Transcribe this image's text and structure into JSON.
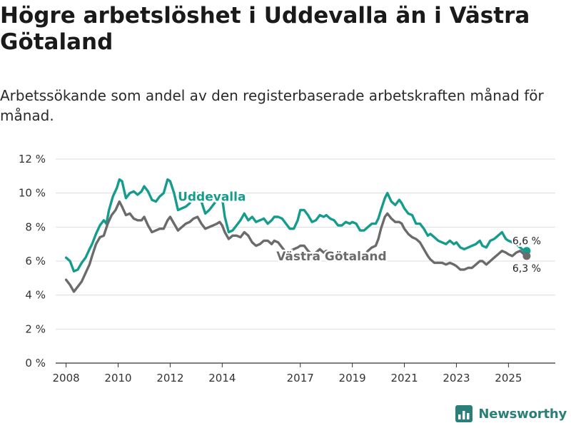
{
  "title": "Högre arbetslöshet i Uddevalla än i Västra Götaland",
  "subtitle": "Arbetssökande som andel av den registerbaserade arbetskraften månad för månad.",
  "brand": "Newsworthy",
  "colors": {
    "uddevalla": "#159c8c",
    "vastra_gotaland": "#6b6b6b",
    "grid": "#dddddd",
    "axis": "#333333",
    "brand": "#2a7f78"
  },
  "chart_data": {
    "type": "line",
    "title": "Högre arbetslöshet i Uddevalla än i Västra Götaland",
    "xlabel": "",
    "ylabel": "",
    "xlim": [
      2007.6,
      2026.8
    ],
    "ylim": [
      0,
      12
    ],
    "xticks": [
      2008,
      2010,
      2012,
      2014,
      2017,
      2019,
      2021,
      2023,
      2025
    ],
    "yticks": [
      {
        "value": 0,
        "label": "0 %"
      },
      {
        "value": 2,
        "label": "2 %"
      },
      {
        "value": 4,
        "label": "4 %"
      },
      {
        "value": 6,
        "label": "6 %"
      },
      {
        "value": 8,
        "label": "8 %"
      },
      {
        "value": 10,
        "label": "10 %"
      },
      {
        "value": 12,
        "label": "12 %"
      }
    ],
    "grid": true,
    "series": [
      {
        "name": "Uddevalla",
        "label_anchor": [
          2013.6,
          9.8
        ],
        "end_label": "6,6 %",
        "points": [
          [
            2008.0,
            6.2
          ],
          [
            2008.15,
            6.0
          ],
          [
            2008.3,
            5.4
          ],
          [
            2008.45,
            5.5
          ],
          [
            2008.6,
            5.9
          ],
          [
            2008.75,
            6.2
          ],
          [
            2008.9,
            6.7
          ],
          [
            2009.0,
            7.0
          ],
          [
            2009.15,
            7.6
          ],
          [
            2009.3,
            8.1
          ],
          [
            2009.45,
            8.4
          ],
          [
            2009.55,
            8.2
          ],
          [
            2009.65,
            9.0
          ],
          [
            2009.8,
            9.8
          ],
          [
            2009.95,
            10.3
          ],
          [
            2010.05,
            10.8
          ],
          [
            2010.15,
            10.7
          ],
          [
            2010.3,
            9.7
          ],
          [
            2010.45,
            10.0
          ],
          [
            2010.6,
            10.1
          ],
          [
            2010.75,
            9.9
          ],
          [
            2010.9,
            10.1
          ],
          [
            2011.0,
            10.4
          ],
          [
            2011.15,
            10.1
          ],
          [
            2011.3,
            9.6
          ],
          [
            2011.45,
            9.5
          ],
          [
            2011.6,
            9.8
          ],
          [
            2011.75,
            10.0
          ],
          [
            2011.9,
            10.8
          ],
          [
            2012.0,
            10.7
          ],
          [
            2012.15,
            10.0
          ],
          [
            2012.3,
            9.0
          ],
          [
            2012.45,
            9.1
          ],
          [
            2012.6,
            9.2
          ],
          [
            2012.75,
            9.4
          ],
          [
            2012.9,
            9.9
          ],
          [
            2013.05,
            10.0
          ],
          [
            2013.2,
            9.5
          ],
          [
            2013.35,
            8.8
          ],
          [
            2013.5,
            9.0
          ],
          [
            2013.65,
            9.3
          ],
          [
            2013.8,
            9.6
          ],
          [
            2013.9,
            9.8
          ],
          [
            2014.0,
            9.7
          ],
          [
            2014.1,
            8.6
          ],
          [
            2014.25,
            7.7
          ],
          [
            2014.4,
            7.8
          ],
          [
            2014.55,
            8.1
          ],
          [
            2014.7,
            8.4
          ],
          [
            2014.85,
            8.8
          ],
          [
            2015.0,
            8.4
          ],
          [
            2015.15,
            8.6
          ],
          [
            2015.3,
            8.3
          ],
          [
            2015.45,
            8.4
          ],
          [
            2015.6,
            8.5
          ],
          [
            2015.75,
            8.2
          ],
          [
            2015.9,
            8.4
          ],
          [
            2016.0,
            8.6
          ],
          [
            2016.15,
            8.6
          ],
          [
            2016.3,
            8.5
          ],
          [
            2016.45,
            8.2
          ],
          [
            2016.6,
            7.9
          ],
          [
            2016.75,
            7.9
          ],
          [
            2016.9,
            8.4
          ],
          [
            2017.0,
            9.0
          ],
          [
            2017.15,
            9.0
          ],
          [
            2017.3,
            8.7
          ],
          [
            2017.45,
            8.3
          ],
          [
            2017.6,
            8.4
          ],
          [
            2017.75,
            8.7
          ],
          [
            2017.9,
            8.6
          ],
          [
            2018.0,
            8.7
          ],
          [
            2018.15,
            8.5
          ],
          [
            2018.3,
            8.4
          ],
          [
            2018.45,
            8.1
          ],
          [
            2018.6,
            8.1
          ],
          [
            2018.75,
            8.3
          ],
          [
            2018.9,
            8.2
          ],
          [
            2019.0,
            8.3
          ],
          [
            2019.15,
            8.2
          ],
          [
            2019.3,
            7.8
          ],
          [
            2019.45,
            7.8
          ],
          [
            2019.6,
            8.0
          ],
          [
            2019.75,
            8.2
          ],
          [
            2019.9,
            8.2
          ],
          [
            2020.0,
            8.5
          ],
          [
            2020.1,
            9.0
          ],
          [
            2020.25,
            9.7
          ],
          [
            2020.35,
            10.0
          ],
          [
            2020.5,
            9.5
          ],
          [
            2020.65,
            9.3
          ],
          [
            2020.8,
            9.6
          ],
          [
            2020.9,
            9.4
          ],
          [
            2021.0,
            9.1
          ],
          [
            2021.15,
            8.8
          ],
          [
            2021.3,
            8.7
          ],
          [
            2021.45,
            8.2
          ],
          [
            2021.6,
            8.2
          ],
          [
            2021.75,
            7.9
          ],
          [
            2021.9,
            7.5
          ],
          [
            2022.0,
            7.6
          ],
          [
            2022.15,
            7.4
          ],
          [
            2022.3,
            7.2
          ],
          [
            2022.45,
            7.1
          ],
          [
            2022.6,
            7.0
          ],
          [
            2022.75,
            7.2
          ],
          [
            2022.9,
            7.0
          ],
          [
            2023.0,
            7.1
          ],
          [
            2023.15,
            6.8
          ],
          [
            2023.3,
            6.7
          ],
          [
            2023.45,
            6.8
          ],
          [
            2023.6,
            6.9
          ],
          [
            2023.75,
            7.0
          ],
          [
            2023.9,
            7.2
          ],
          [
            2024.0,
            6.9
          ],
          [
            2024.15,
            6.8
          ],
          [
            2024.3,
            7.2
          ],
          [
            2024.45,
            7.3
          ],
          [
            2024.6,
            7.5
          ],
          [
            2024.75,
            7.7
          ],
          [
            2024.9,
            7.3
          ],
          [
            2025.0,
            7.2
          ],
          [
            2025.15,
            7.1
          ],
          [
            2025.3,
            7.0
          ],
          [
            2025.45,
            6.8
          ],
          [
            2025.6,
            6.6
          ],
          [
            2025.7,
            6.6
          ]
        ]
      },
      {
        "name": "Västra Götaland",
        "label_anchor": [
          2018.2,
          6.3
        ],
        "end_label": "6,3 %",
        "points": [
          [
            2008.0,
            4.9
          ],
          [
            2008.15,
            4.6
          ],
          [
            2008.3,
            4.2
          ],
          [
            2008.45,
            4.5
          ],
          [
            2008.6,
            4.8
          ],
          [
            2008.75,
            5.3
          ],
          [
            2008.9,
            5.8
          ],
          [
            2009.0,
            6.3
          ],
          [
            2009.15,
            7.0
          ],
          [
            2009.3,
            7.4
          ],
          [
            2009.45,
            7.5
          ],
          [
            2009.6,
            8.2
          ],
          [
            2009.75,
            8.7
          ],
          [
            2009.9,
            9.0
          ],
          [
            2010.05,
            9.5
          ],
          [
            2010.15,
            9.2
          ],
          [
            2010.3,
            8.7
          ],
          [
            2010.45,
            8.8
          ],
          [
            2010.6,
            8.5
          ],
          [
            2010.75,
            8.4
          ],
          [
            2010.9,
            8.4
          ],
          [
            2011.0,
            8.6
          ],
          [
            2011.15,
            8.1
          ],
          [
            2011.3,
            7.7
          ],
          [
            2011.45,
            7.8
          ],
          [
            2011.6,
            7.9
          ],
          [
            2011.75,
            7.9
          ],
          [
            2011.9,
            8.4
          ],
          [
            2012.0,
            8.6
          ],
          [
            2012.15,
            8.2
          ],
          [
            2012.3,
            7.8
          ],
          [
            2012.45,
            8.0
          ],
          [
            2012.6,
            8.2
          ],
          [
            2012.75,
            8.3
          ],
          [
            2012.9,
            8.5
          ],
          [
            2013.05,
            8.6
          ],
          [
            2013.2,
            8.2
          ],
          [
            2013.35,
            7.9
          ],
          [
            2013.5,
            8.0
          ],
          [
            2013.65,
            8.1
          ],
          [
            2013.8,
            8.2
          ],
          [
            2013.9,
            8.3
          ],
          [
            2014.0,
            8.1
          ],
          [
            2014.1,
            7.7
          ],
          [
            2014.25,
            7.3
          ],
          [
            2014.4,
            7.5
          ],
          [
            2014.55,
            7.5
          ],
          [
            2014.7,
            7.4
          ],
          [
            2014.85,
            7.7
          ],
          [
            2015.0,
            7.5
          ],
          [
            2015.15,
            7.1
          ],
          [
            2015.3,
            6.9
          ],
          [
            2015.45,
            7.0
          ],
          [
            2015.6,
            7.2
          ],
          [
            2015.75,
            7.2
          ],
          [
            2015.9,
            7.0
          ],
          [
            2016.0,
            7.2
          ],
          [
            2016.15,
            7.1
          ],
          [
            2016.3,
            6.8
          ],
          [
            2016.45,
            6.5
          ],
          [
            2016.6,
            6.6
          ],
          [
            2016.75,
            6.7
          ],
          [
            2016.9,
            6.8
          ],
          [
            2017.0,
            6.9
          ],
          [
            2017.15,
            6.9
          ],
          [
            2017.3,
            6.6
          ],
          [
            2017.45,
            6.4
          ],
          [
            2017.6,
            6.5
          ],
          [
            2017.75,
            6.7
          ],
          [
            2017.9,
            6.5
          ],
          [
            2018.0,
            6.6
          ],
          [
            2018.15,
            6.5
          ],
          [
            2018.3,
            6.3
          ],
          [
            2018.45,
            6.2
          ],
          [
            2018.6,
            6.2
          ],
          [
            2018.75,
            6.3
          ],
          [
            2018.9,
            6.2
          ],
          [
            2019.0,
            6.1
          ],
          [
            2019.15,
            6.0
          ],
          [
            2019.3,
            6.1
          ],
          [
            2019.45,
            6.3
          ],
          [
            2019.6,
            6.6
          ],
          [
            2019.75,
            6.8
          ],
          [
            2019.9,
            6.9
          ],
          [
            2020.0,
            7.3
          ],
          [
            2020.1,
            7.9
          ],
          [
            2020.25,
            8.6
          ],
          [
            2020.35,
            8.8
          ],
          [
            2020.5,
            8.5
          ],
          [
            2020.65,
            8.3
          ],
          [
            2020.8,
            8.3
          ],
          [
            2020.9,
            8.2
          ],
          [
            2021.0,
            7.9
          ],
          [
            2021.15,
            7.6
          ],
          [
            2021.3,
            7.4
          ],
          [
            2021.45,
            7.3
          ],
          [
            2021.6,
            7.1
          ],
          [
            2021.75,
            6.7
          ],
          [
            2021.9,
            6.3
          ],
          [
            2022.0,
            6.1
          ],
          [
            2022.15,
            5.9
          ],
          [
            2022.3,
            5.9
          ],
          [
            2022.45,
            5.9
          ],
          [
            2022.6,
            5.8
          ],
          [
            2022.75,
            5.9
          ],
          [
            2022.9,
            5.8
          ],
          [
            2023.0,
            5.7
          ],
          [
            2023.15,
            5.5
          ],
          [
            2023.3,
            5.5
          ],
          [
            2023.45,
            5.6
          ],
          [
            2023.6,
            5.6
          ],
          [
            2023.75,
            5.8
          ],
          [
            2023.9,
            6.0
          ],
          [
            2024.0,
            6.0
          ],
          [
            2024.15,
            5.8
          ],
          [
            2024.3,
            6.0
          ],
          [
            2024.45,
            6.2
          ],
          [
            2024.6,
            6.4
          ],
          [
            2024.75,
            6.6
          ],
          [
            2024.9,
            6.5
          ],
          [
            2025.0,
            6.4
          ],
          [
            2025.15,
            6.3
          ],
          [
            2025.3,
            6.5
          ],
          [
            2025.45,
            6.6
          ],
          [
            2025.6,
            6.4
          ],
          [
            2025.7,
            6.3
          ]
        ]
      }
    ]
  }
}
